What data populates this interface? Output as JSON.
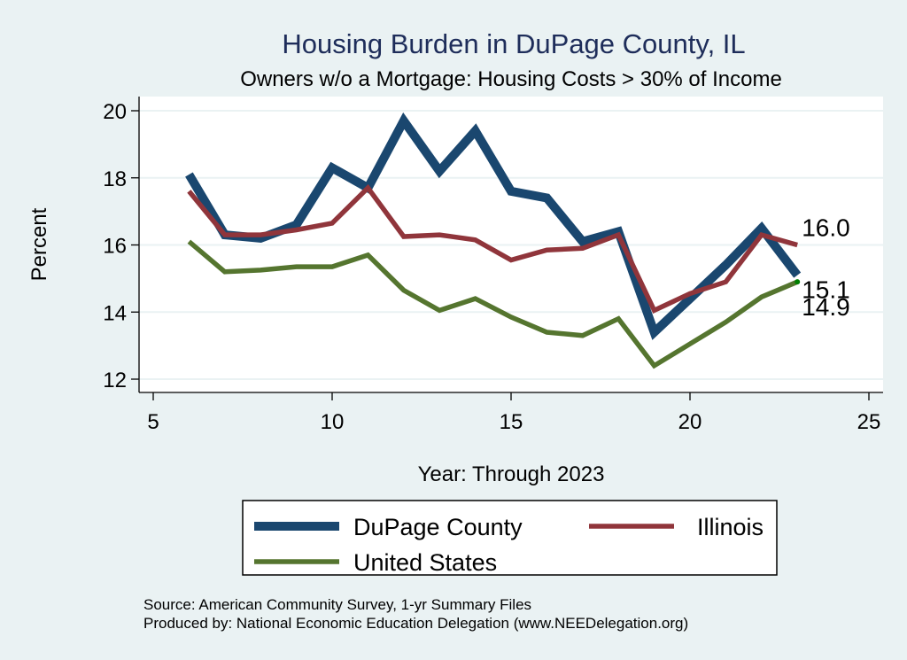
{
  "chart_data": {
    "type": "line",
    "title": "Housing Burden in DuPage County, IL",
    "subtitle": "Owners w/o a Mortgage: Housing Costs > 30% of Income",
    "xlabel": "Year: Through 2023",
    "ylabel": "Percent",
    "xlim": [
      5,
      25
    ],
    "ylim": [
      12,
      20
    ],
    "xticks": [
      5,
      10,
      15,
      20,
      25
    ],
    "yticks": [
      12,
      14,
      16,
      18,
      20
    ],
    "grid": true,
    "x": [
      6,
      7,
      8,
      9,
      10,
      11,
      12,
      13,
      14,
      15,
      16,
      17,
      18,
      19,
      20,
      21,
      22,
      23
    ],
    "series": [
      {
        "name": "DuPage County",
        "color": "#1A476F",
        "values": [
          18.1,
          16.3,
          16.2,
          16.6,
          18.3,
          17.7,
          19.7,
          18.2,
          19.4,
          17.6,
          17.4,
          16.1,
          16.4,
          13.4,
          14.4,
          15.4,
          16.5,
          15.1
        ],
        "end_label": "15.1"
      },
      {
        "name": "Illinois",
        "color": "#90353B",
        "values": [
          17.6,
          16.3,
          16.3,
          16.45,
          16.65,
          17.7,
          16.25,
          16.3,
          16.15,
          15.55,
          15.85,
          15.9,
          16.3,
          14.05,
          14.55,
          14.9,
          16.3,
          16.0
        ],
        "end_label": "16.0"
      },
      {
        "name": "United States",
        "color": "#55752F",
        "values": [
          16.1,
          15.2,
          15.25,
          15.35,
          15.35,
          15.7,
          14.65,
          14.05,
          14.4,
          13.85,
          13.4,
          13.3,
          13.8,
          12.4,
          13.05,
          13.7,
          14.45,
          14.9
        ],
        "end_label": "14.9"
      }
    ],
    "legend": {
      "placement": "bottom",
      "entries": [
        "DuPage County",
        "Illinois",
        "United States"
      ]
    },
    "notes": [
      "Source: American Community Survey, 1-yr Summary Files",
      "Produced by: National Economic Education Delegation (www.NEEDelegation.org)"
    ]
  }
}
